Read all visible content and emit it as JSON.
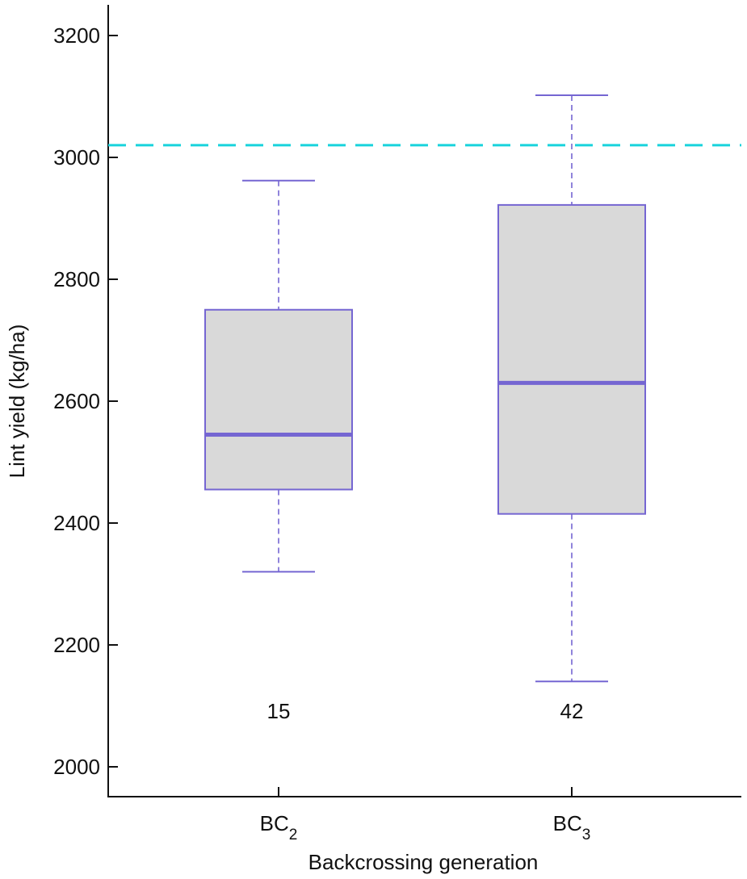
{
  "chart_data": {
    "type": "box",
    "title": "",
    "xlabel": "Backcrossing generation",
    "ylabel": "Lint yield (kg/ha)",
    "ylim": [
      1950,
      3250
    ],
    "yticks": [
      2000,
      2200,
      2400,
      2600,
      2800,
      3000,
      3200
    ],
    "categories": [
      {
        "base": "BC",
        "sub": "2"
      },
      {
        "base": "BC",
        "sub": "3"
      }
    ],
    "boxes": [
      {
        "min": 2320,
        "q1": 2455,
        "median": 2545,
        "q3": 2750,
        "max": 2962,
        "n": "15"
      },
      {
        "min": 2140,
        "q1": 2415,
        "median": 2630,
        "q3": 2922,
        "max": 3102,
        "n": "42"
      }
    ],
    "reference_line": {
      "value": 3020,
      "style": "dashed",
      "color": "#19d3dc"
    },
    "colors": {
      "box_fill": "#d9d9d9",
      "box_stroke": "#7566d2",
      "median": "#7566d2",
      "axis": "#111111"
    }
  }
}
